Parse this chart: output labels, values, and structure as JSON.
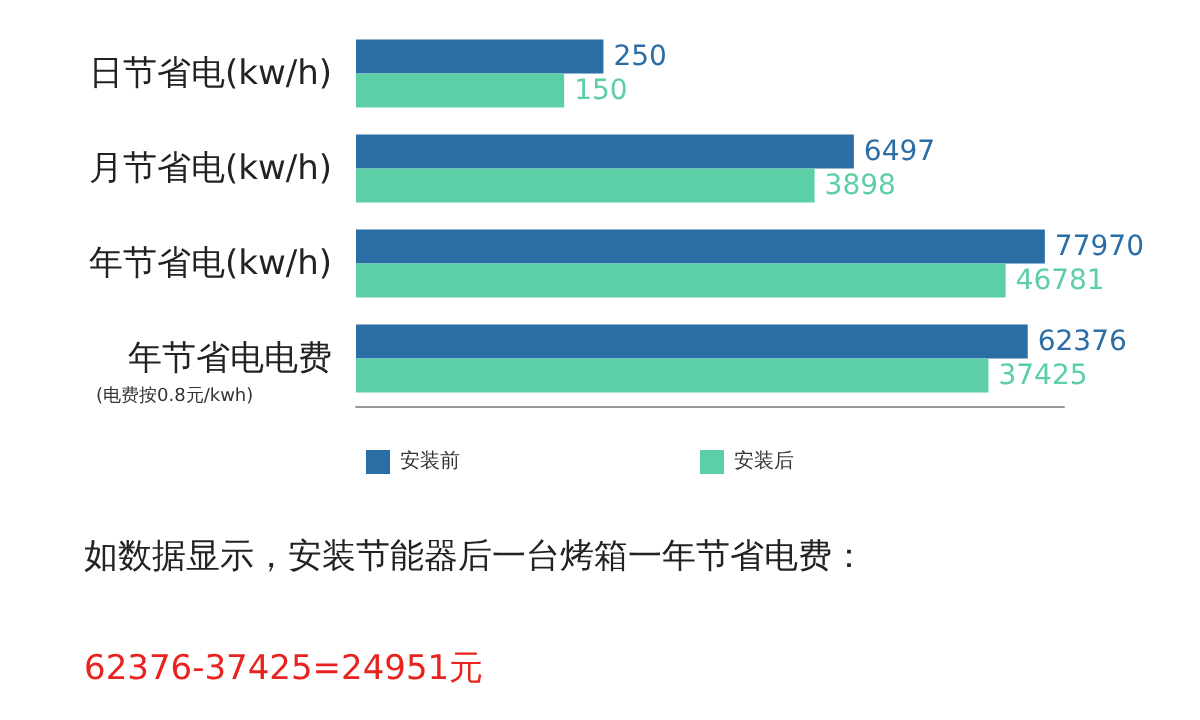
{
  "chart_data": {
    "type": "bar",
    "orientation": "horizontal",
    "categories": [
      "日节省电(kw/h)",
      "月节省电(kw/h)",
      "年节省电(kw/h)",
      "年节省电电费"
    ],
    "series": [
      {
        "name": "安装前",
        "color": "#2b6ea6",
        "values": [
          250,
          6497,
          77970,
          62376
        ]
      },
      {
        "name": "安装后",
        "color": "#5ccfa7",
        "values": [
          150,
          3898,
          46781,
          37425
        ]
      }
    ],
    "log": "x",
    "xlim": [
      10,
      100000
    ],
    "tick_labels": "y",
    "data_labels": true,
    "legend": "bottom",
    "annotations": [
      "(电费按0.8元/kwh)",
      "如数据显示，安装节能器后一台烤箱一年节省电费：",
      "62376-37425=24951元"
    ]
  }
}
